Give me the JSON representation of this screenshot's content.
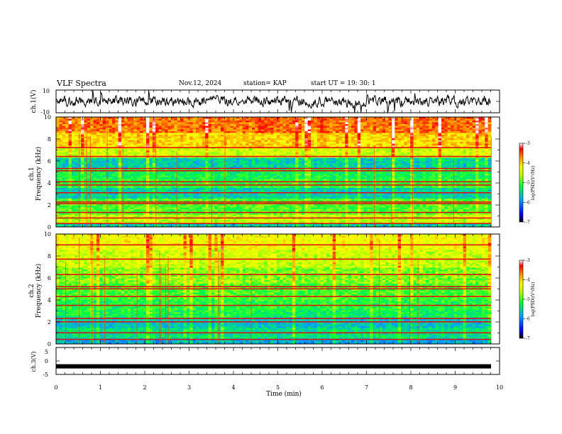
{
  "header": {
    "title": "VLF Spectra",
    "date": "Nov.12, 2024",
    "station": "station= KAP",
    "start": "start  UT =   19: 30: 1"
  },
  "chart_data": [
    {
      "type": "line",
      "panel": "ch1-waveform",
      "ylabel": "ch.1(V)",
      "ylim": [
        -10,
        10
      ],
      "ytick_labels": [
        "10",
        "-10"
      ],
      "xlim": [
        0,
        10
      ],
      "description_values": {
        "baseline_V": 0,
        "typical_amplitude_V": 3
      }
    },
    {
      "type": "heatmap",
      "panel": "ch1-spectrogram",
      "ylabel": "ch.1",
      "ylabel2": "Frequency (kHz)",
      "ylim": [
        0,
        10
      ],
      "ytick_labels": [
        "0",
        "2",
        "4",
        "6",
        "8",
        "10"
      ],
      "xlim": [
        0,
        9.8
      ],
      "bands_kHz": [
        0.3,
        0.8,
        1.3,
        2.1,
        2.25,
        3.1,
        3.8,
        4.1,
        5.1,
        5.3,
        6.4,
        7.2
      ],
      "colorbar": {
        "label": "log(PSD)(V²/Hz)",
        "range": [
          -7,
          -3
        ],
        "tick_labels": [
          "-3",
          "-4",
          "-5",
          "-6",
          "-7"
        ]
      }
    },
    {
      "type": "heatmap",
      "panel": "ch2-spectrogram",
      "ylabel": "ch.2",
      "ylabel2": "Frequency (kHz)",
      "ylim": [
        0,
        10
      ],
      "ytick_labels": [
        "0",
        "2",
        "4",
        "6",
        "8",
        "10"
      ],
      "xlim": [
        0,
        9.8
      ],
      "bands_kHz": [
        0.4,
        1.0,
        2.0,
        2.3,
        3.5,
        4.3,
        5.0,
        5.2,
        6.3,
        7.7,
        9.0
      ],
      "colorbar": {
        "label": "log(PSD)(V²/Hz)",
        "range": [
          -7,
          -3
        ],
        "tick_labels": [
          "-3",
          "-4",
          "-5",
          "-6",
          "-7"
        ]
      }
    },
    {
      "type": "line",
      "panel": "ch3-signal",
      "ylabel": "ch.3(V)",
      "ylim": [
        -5,
        5
      ],
      "ytick_labels": [
        "5",
        "0",
        "-5"
      ],
      "xlim": [
        0,
        10
      ],
      "level_V": -2
    }
  ],
  "xaxis": {
    "label": "Time (min)",
    "range": [
      0,
      10
    ],
    "tick_labels": [
      "0",
      "1",
      "2",
      "3",
      "4",
      "5",
      "6",
      "7",
      "8",
      "9",
      "10"
    ]
  },
  "colors": {
    "axis": "#000000",
    "waveform": "#000000",
    "colormap": [
      "#000000",
      "#0000ff",
      "#00a0ff",
      "#00ff40",
      "#c8ff00",
      "#ffff00",
      "#ff9000",
      "#ff0000",
      "#ffffff"
    ]
  }
}
